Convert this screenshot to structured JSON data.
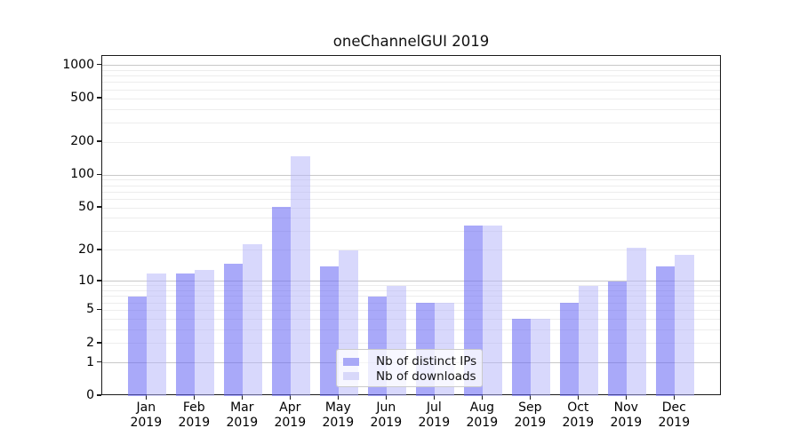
{
  "title": "oneChannelGUI 2019",
  "chart_data": {
    "type": "bar",
    "title": "oneChannelGUI 2019",
    "year_label": "2019",
    "categories": [
      "Jan",
      "Feb",
      "Mar",
      "Apr",
      "May",
      "Jun",
      "Jul",
      "Aug",
      "Sep",
      "Oct",
      "Nov",
      "Dec"
    ],
    "series": [
      {
        "name": "Nb of distinct IPs",
        "color": "#a9a9f7",
        "fill": "rgba(103,103,245,0.57)",
        "values": [
          7,
          12,
          15,
          51,
          14,
          7,
          6,
          34,
          4,
          6,
          10,
          14
        ]
      },
      {
        "name": "Nb of downloads",
        "color": "#d8d8fa",
        "fill": "rgba(180,180,250,0.52)",
        "values": [
          12,
          13,
          23,
          150,
          20,
          9,
          6,
          34,
          4,
          9,
          21,
          18
        ]
      }
    ],
    "xlabel": "",
    "ylabel": "",
    "yscale": "log1p",
    "ylim_top": 1220,
    "yticks": [
      0,
      1,
      2,
      5,
      10,
      20,
      50,
      100,
      200,
      500,
      1000
    ],
    "grid_minor": [
      2,
      3,
      4,
      5,
      6,
      7,
      8,
      9,
      20,
      30,
      40,
      50,
      60,
      70,
      80,
      90,
      200,
      300,
      400,
      500,
      600,
      700,
      800,
      900
    ],
    "grid_major": [
      1,
      10,
      100,
      1000
    ],
    "legend_position": "inside-lower-center",
    "grid": "on"
  }
}
